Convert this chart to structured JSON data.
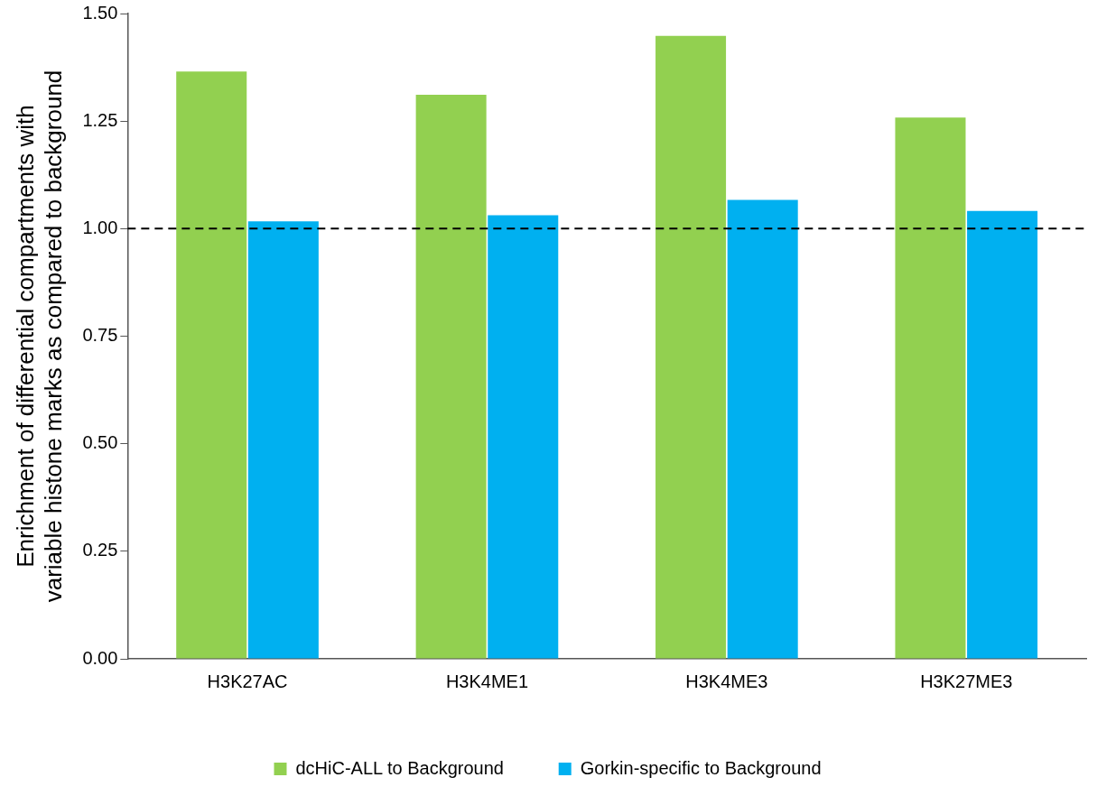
{
  "chart_data": {
    "type": "bar",
    "ylabel": "Enrichment of differential compartments with variable histone marks as compared to background",
    "categories": [
      "H3K27AC",
      "H3K4ME1",
      "H3K4ME3",
      "H3K27ME3"
    ],
    "series": [
      {
        "name": "dcHiC-ALL to Background",
        "color": "#92d050",
        "values": [
          1.365,
          1.311,
          1.448,
          1.258
        ]
      },
      {
        "name": "Gorkin-specific to Background",
        "color": "#00b0f0",
        "values": [
          1.017,
          1.031,
          1.067,
          1.041
        ]
      }
    ],
    "ylim": [
      0,
      1.5
    ],
    "yticks": [
      {
        "value": 0,
        "label": "0.00"
      },
      {
        "value": 0.25,
        "label": "0.25"
      },
      {
        "value": 0.5,
        "label": "0.50"
      },
      {
        "value": 0.75,
        "label": "0.75"
      },
      {
        "value": 1,
        "label": "1.00"
      },
      {
        "value": 1.25,
        "label": "1.25"
      },
      {
        "value": 1.5,
        "label": "1.50"
      }
    ],
    "ref_lines": [
      {
        "axis": "y",
        "value": 1,
        "color": "#000000",
        "line_style": "dashed"
      }
    ],
    "grid": false,
    "legend": "bottom"
  }
}
